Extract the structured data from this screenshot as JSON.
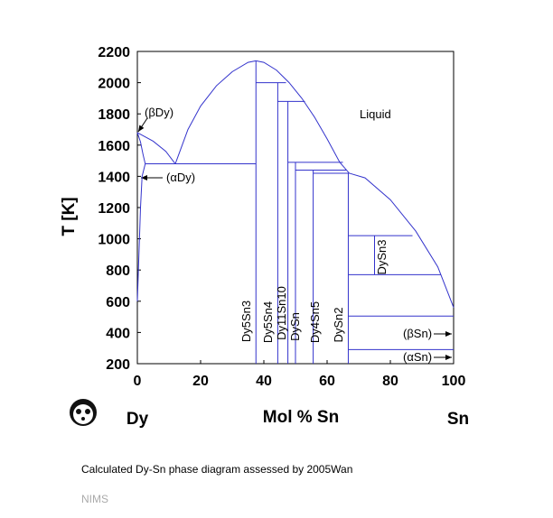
{
  "chart_data": {
    "type": "phase-diagram",
    "x_label": "Mol % Sn",
    "y_label": "T [K]",
    "left_element": "Dy",
    "right_element": "Sn",
    "xlim": [
      0,
      100
    ],
    "ylim": [
      200,
      2200
    ],
    "xticks": [
      0,
      20,
      40,
      60,
      80,
      100
    ],
    "yticks": [
      200,
      400,
      600,
      800,
      1000,
      1200,
      1400,
      1600,
      1800,
      2000,
      2200
    ],
    "color": "#3333cc",
    "series": [
      {
        "x": [
          0,
          5,
          9,
          12
        ],
        "y": [
          1680,
          1625,
          1560,
          1480
        ]
      },
      {
        "x": [
          12,
          16,
          20,
          25,
          30,
          35,
          37.5
        ],
        "y": [
          1480,
          1700,
          1850,
          1980,
          2070,
          2130,
          2140
        ]
      },
      {
        "x": [
          37.5,
          40,
          44,
          48,
          52,
          56,
          60,
          64,
          67
        ],
        "y": [
          2140,
          2130,
          2080,
          2000,
          1900,
          1780,
          1640,
          1490,
          1420
        ]
      },
      {
        "x": [
          67,
          72,
          80,
          88,
          95,
          100
        ],
        "y": [
          1420,
          1390,
          1250,
          1050,
          820,
          560
        ]
      },
      {
        "x": [
          0,
          1,
          1.8,
          2.5
        ],
        "y": [
          1680,
          1620,
          1540,
          1480
        ]
      },
      {
        "x": [
          0,
          0.5,
          1,
          1.5,
          2.5
        ],
        "y": [
          600,
          900,
          1200,
          1400,
          1480
        ]
      },
      {
        "x": [
          2.5,
          37.5
        ],
        "y": [
          1480,
          1480
        ]
      },
      {
        "x": [
          37.5,
          37.5
        ],
        "y": [
          200,
          2140
        ]
      },
      {
        "x": [
          44.4,
          44.4
        ],
        "y": [
          200,
          2000
        ]
      },
      {
        "x": [
          37.5,
          47
        ],
        "y": [
          2000,
          2000
        ]
      },
      {
        "x": [
          47.6,
          47.6
        ],
        "y": [
          200,
          1880
        ]
      },
      {
        "x": [
          44.4,
          53
        ],
        "y": [
          1880,
          1880
        ]
      },
      {
        "x": [
          50,
          50
        ],
        "y": [
          200,
          1490
        ]
      },
      {
        "x": [
          47.6,
          65
        ],
        "y": [
          1490,
          1490
        ]
      },
      {
        "x": [
          55.6,
          55.6
        ],
        "y": [
          200,
          1440
        ]
      },
      {
        "x": [
          50,
          66
        ],
        "y": [
          1440,
          1440
        ]
      },
      {
        "x": [
          55.6,
          67
        ],
        "y": [
          1420,
          1420
        ]
      },
      {
        "x": [
          66.7,
          66.7
        ],
        "y": [
          200,
          1420
        ]
      },
      {
        "x": [
          75,
          75
        ],
        "y": [
          770,
          1020
        ]
      },
      {
        "x": [
          66.7,
          87
        ],
        "y": [
          1020,
          1020
        ]
      },
      {
        "x": [
          66.7,
          96
        ],
        "y": [
          770,
          770
        ]
      },
      {
        "x": [
          66.7,
          100
        ],
        "y": [
          505,
          505
        ]
      },
      {
        "x": [
          66.7,
          100
        ],
        "y": [
          290,
          290
        ]
      }
    ],
    "annotations": [
      "(βDy)",
      "(αDy)",
      "Liquid",
      "(βSn)",
      "(αSn)",
      "DySn3",
      "Dy5Sn3",
      "Dy5Sn4",
      "Dy11Sn10",
      "DySn",
      "Dy4Sn5",
      "DySn2"
    ]
  },
  "caption": "Calculated Dy-Sn phase diagram assessed by 2005Wan",
  "source": "NIMS"
}
